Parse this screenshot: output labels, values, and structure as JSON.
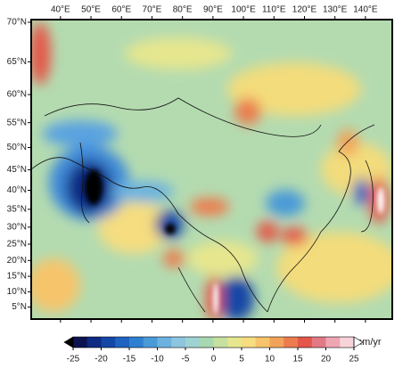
{
  "chart_data": {
    "type": "map",
    "xlim": [
      30.4,
      148.8
    ],
    "ylim": [
      1,
      70.3
    ],
    "xticks": [
      {
        "value": 40,
        "label": "40°E"
      },
      {
        "value": 50,
        "label": "50°E"
      },
      {
        "value": 60,
        "label": "60°E"
      },
      {
        "value": 70,
        "label": "70°E"
      },
      {
        "value": 80,
        "label": "80°E"
      },
      {
        "value": 90,
        "label": "90°E"
      },
      {
        "value": 100,
        "label": "100°E"
      },
      {
        "value": 110,
        "label": "110°E"
      },
      {
        "value": 120,
        "label": "120°E"
      },
      {
        "value": 130,
        "label": "130°E"
      },
      {
        "value": 140,
        "label": "140°E"
      }
    ],
    "yticks": [
      {
        "value": 70,
        "label": "70°N"
      },
      {
        "value": 65,
        "label": "65°N"
      },
      {
        "value": 60,
        "label": "60°N"
      },
      {
        "value": 55,
        "label": "55°N"
      },
      {
        "value": 50,
        "label": "50°N"
      },
      {
        "value": 45,
        "label": "45°N"
      },
      {
        "value": 40,
        "label": "40°N"
      },
      {
        "value": 35,
        "label": "35°N"
      },
      {
        "value": 30,
        "label": "30°N"
      },
      {
        "value": 25,
        "label": "25°N"
      },
      {
        "value": 20,
        "label": "20°N"
      },
      {
        "value": 15,
        "label": "15°N"
      },
      {
        "value": 10,
        "label": "10°N"
      },
      {
        "value": 5,
        "label": "5°N"
      }
    ],
    "colorbar": {
      "label": "mm/yr",
      "clim": [
        -25,
        25
      ],
      "ticks": [
        -25,
        -20,
        -15,
        -10,
        -5,
        0,
        5,
        10,
        15,
        20,
        25
      ],
      "colors": [
        "#0b1450",
        "#0e2a82",
        "#1446a6",
        "#1f63c2",
        "#2f80d0",
        "#4a9ad8",
        "#6bb2df",
        "#8ec6e0",
        "#9fd3d3",
        "#a8d8b0",
        "#c6e0a0",
        "#e6e68e",
        "#f5dd80",
        "#f6c46a",
        "#f2a25a",
        "#ec7c4e",
        "#e4564a",
        "#e27a86",
        "#eea6b2",
        "#f7d4da"
      ],
      "under_color": "#000000",
      "over_color": "#ffffff"
    }
  }
}
